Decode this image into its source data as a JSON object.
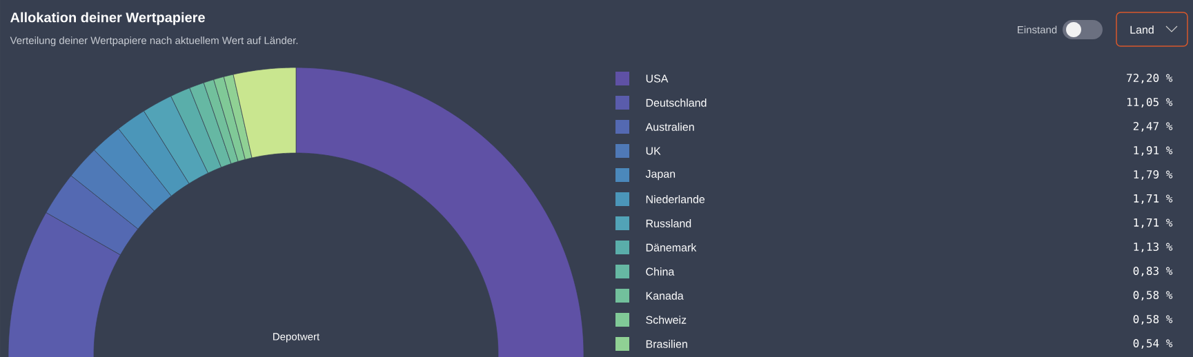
{
  "chart_data": {
    "type": "donut",
    "title": "Allokation deiner Wertpapiere",
    "subtitle": "Verteilung deiner Wertpapiere nach aktuellem Wert auf Länder.",
    "categories": [
      "USA",
      "Deutschland",
      "Australien",
      "UK",
      "Japan",
      "Niederlande",
      "Russland",
      "Dänemark",
      "China",
      "Kanada",
      "Schweiz",
      "Brasilien",
      null
    ],
    "values": [
      72.2,
      11.05,
      2.47,
      1.91,
      1.79,
      1.71,
      1.71,
      1.13,
      0.83,
      0.58,
      0.58,
      0.54,
      3.5
    ],
    "colors": [
      "#5f51a5",
      "#5a5cac",
      "#5469b2",
      "#4f79b7",
      "#4b88bb",
      "#4b96b9",
      "#52a3b7",
      "#5aaeaa",
      "#66b8a3",
      "#72c09c",
      "#80c997",
      "#90d194",
      "#c9e68f"
    ],
    "value_labels": [
      "72,20 %",
      "11,05 %",
      "2,47 %",
      "1,91 %",
      "1,79 %",
      "1,71 %",
      "1,71 %",
      "1,13 %",
      "0,83 %",
      "0,58 %",
      "0,58 %",
      "0,54 %",
      null
    ],
    "legend": "right",
    "annotations": [
      "Depotwert",
      "Einstand",
      "Land"
    ]
  }
}
